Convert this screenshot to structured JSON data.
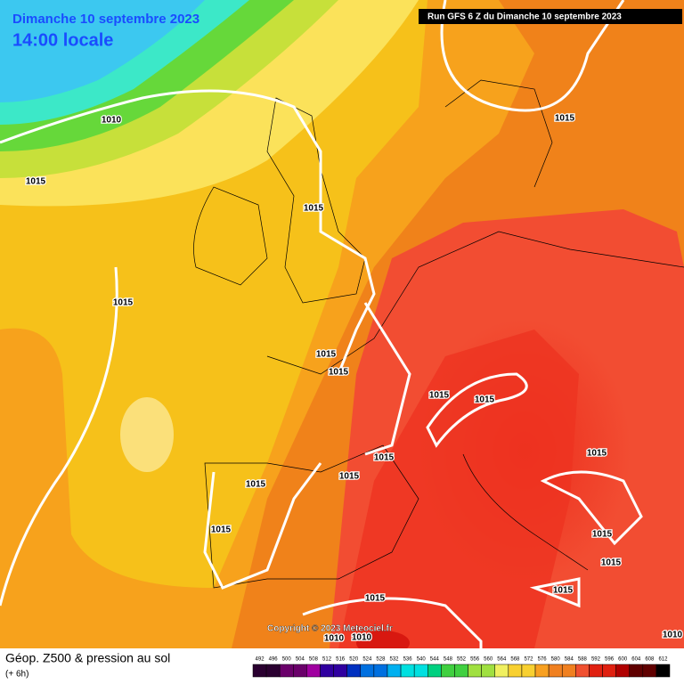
{
  "header": {
    "date": "Dimanche 10 septembre 2023",
    "time": "14:00 locale",
    "run": "Run GFS 6 Z du Dimanche 10 septembre 2023"
  },
  "copyright": "Copyright © 2023 Meteociel.fr",
  "isobar_labels": [
    "1010",
    "1015",
    "1015",
    "1015",
    "1015",
    "1015",
    "1015",
    "1015",
    "1015",
    "1015",
    "1015",
    "1015",
    "1015",
    "1015",
    "1015",
    "1015",
    "1015",
    "1015",
    "1010",
    "1010",
    "1010"
  ],
  "footer": {
    "title": "Géop. Z500 & pression au sol",
    "subtitle": "(+ 6h)"
  },
  "scale": [
    492,
    496,
    500,
    504,
    508,
    512,
    516,
    520,
    524,
    528,
    532,
    536,
    540,
    544,
    548,
    552,
    556,
    560,
    564,
    568,
    572,
    576,
    580,
    584,
    588,
    592,
    596,
    600,
    604,
    608,
    612
  ]
}
